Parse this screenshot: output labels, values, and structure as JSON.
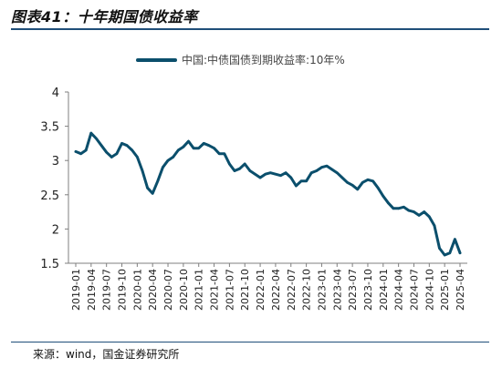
{
  "header": {
    "title": "图表41：十年期国债收益率"
  },
  "footer": {
    "source": "来源：wind，国金证券研究所"
  },
  "colors": {
    "series": "#0b4f6c",
    "rule": "#1f4e79",
    "axis": "#7f7f7f"
  },
  "chart_data": {
    "type": "line",
    "title": "",
    "xlabel": "",
    "ylabel": "",
    "ylim": [
      1.5,
      4
    ],
    "yticks": [
      "1.5",
      "2",
      "2.5",
      "3",
      "3.5",
      "4"
    ],
    "xticks": [
      "2019-01",
      "2019-04",
      "2019-07",
      "2019-10",
      "2020-01",
      "2020-04",
      "2020-07",
      "2020-10",
      "2021-01",
      "2021-04",
      "2021-07",
      "2021-10",
      "2022-01",
      "2022-04",
      "2022-07",
      "2022-10",
      "2023-01",
      "2023-04",
      "2023-07",
      "2023-10",
      "2024-01",
      "2024-04",
      "2024-07",
      "2024-10",
      "2025-01",
      "2025-04"
    ],
    "grid": false,
    "legend_position": "top-center",
    "series": [
      {
        "name": "中国:中债国债到期收益率:10年%",
        "x": [
          "2019-01",
          "2019-02",
          "2019-03",
          "2019-04",
          "2019-05",
          "2019-06",
          "2019-07",
          "2019-08",
          "2019-09",
          "2019-10",
          "2019-11",
          "2019-12",
          "2020-01",
          "2020-02",
          "2020-03",
          "2020-04",
          "2020-05",
          "2020-06",
          "2020-07",
          "2020-08",
          "2020-09",
          "2020-10",
          "2020-11",
          "2020-12",
          "2021-01",
          "2021-02",
          "2021-03",
          "2021-04",
          "2021-05",
          "2021-06",
          "2021-07",
          "2021-08",
          "2021-09",
          "2021-10",
          "2021-11",
          "2021-12",
          "2022-01",
          "2022-02",
          "2022-03",
          "2022-04",
          "2022-05",
          "2022-06",
          "2022-07",
          "2022-08",
          "2022-09",
          "2022-10",
          "2022-11",
          "2022-12",
          "2023-01",
          "2023-02",
          "2023-03",
          "2023-04",
          "2023-05",
          "2023-06",
          "2023-07",
          "2023-08",
          "2023-09",
          "2023-10",
          "2023-11",
          "2023-12",
          "2024-01",
          "2024-02",
          "2024-03",
          "2024-04",
          "2024-05",
          "2024-06",
          "2024-07",
          "2024-08",
          "2024-09",
          "2024-10",
          "2024-11",
          "2024-12",
          "2025-01",
          "2025-02",
          "2025-03",
          "2025-04"
        ],
        "values": [
          3.13,
          3.1,
          3.15,
          3.4,
          3.32,
          3.22,
          3.12,
          3.05,
          3.1,
          3.25,
          3.22,
          3.15,
          3.05,
          2.85,
          2.6,
          2.52,
          2.7,
          2.9,
          3.0,
          3.05,
          3.15,
          3.2,
          3.28,
          3.18,
          3.18,
          3.25,
          3.22,
          3.18,
          3.1,
          3.1,
          2.95,
          2.85,
          2.88,
          2.95,
          2.85,
          2.8,
          2.75,
          2.8,
          2.82,
          2.8,
          2.78,
          2.82,
          2.75,
          2.63,
          2.7,
          2.7,
          2.82,
          2.85,
          2.9,
          2.92,
          2.87,
          2.82,
          2.75,
          2.68,
          2.64,
          2.58,
          2.68,
          2.72,
          2.7,
          2.6,
          2.48,
          2.38,
          2.3,
          2.3,
          2.32,
          2.27,
          2.25,
          2.2,
          2.25,
          2.18,
          2.05,
          1.72,
          1.62,
          1.65,
          1.85,
          1.65
        ]
      }
    ]
  }
}
